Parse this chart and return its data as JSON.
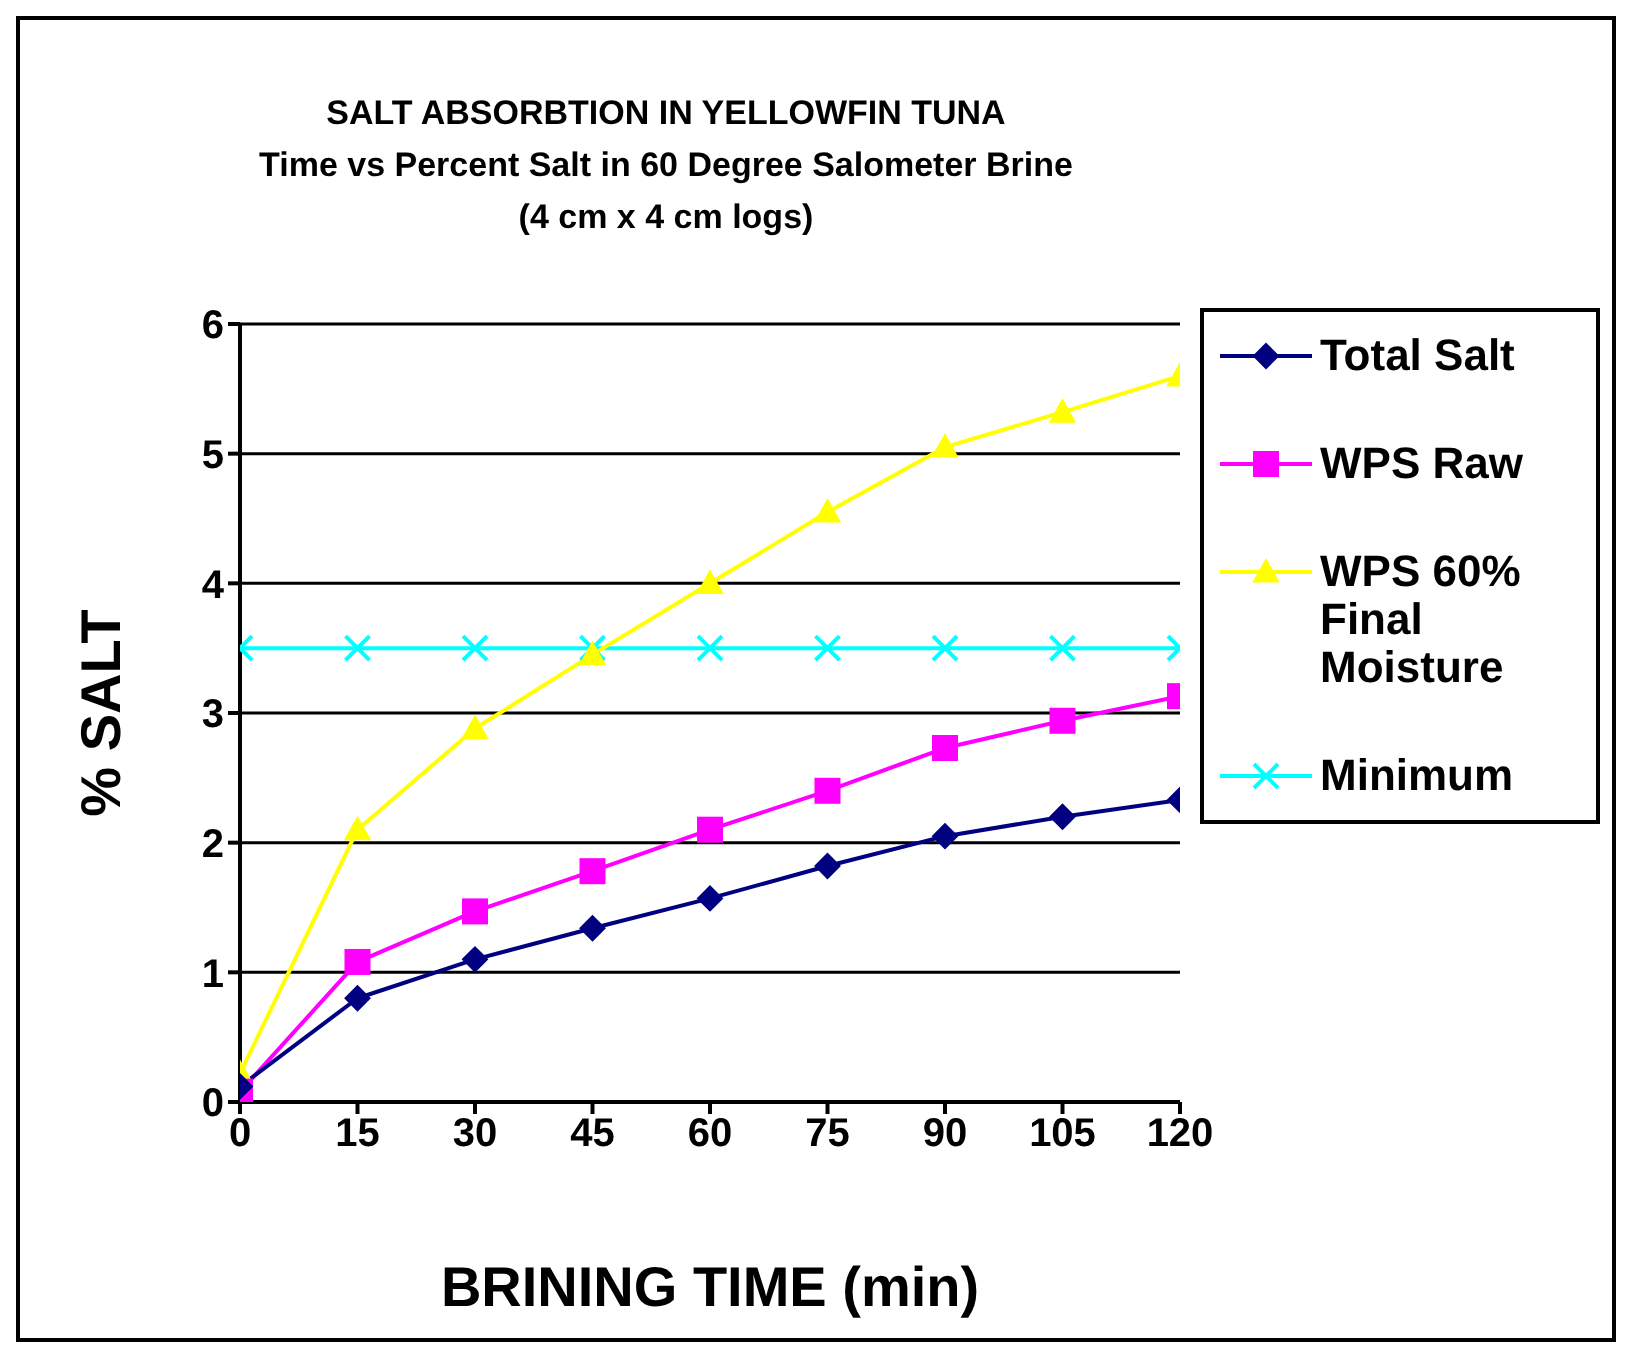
{
  "chart_data": {
    "type": "line",
    "title": "SALT ABSORBTION IN YELLOWFIN TUNA",
    "subtitle": "Time vs Percent Salt in 60 Degree Salometer Brine\n(4 cm x 4 cm logs)",
    "xlabel": "BRINING TIME (min)",
    "ylabel": "% SALT",
    "x": [
      0,
      15,
      30,
      45,
      60,
      75,
      90,
      105,
      120
    ],
    "series": [
      {
        "name": "Total Salt",
        "color": "#000080",
        "marker": "diamond",
        "values": [
          0.12,
          0.8,
          1.1,
          1.34,
          1.57,
          1.82,
          2.05,
          2.2,
          2.33
        ]
      },
      {
        "name": "WPS Raw",
        "color": "#ff00ff",
        "marker": "square",
        "values": [
          0.08,
          1.08,
          1.47,
          1.78,
          2.1,
          2.4,
          2.73,
          2.94,
          3.13
        ]
      },
      {
        "name": "WPS 60% Final Moisture",
        "color": "#ffff00",
        "marker": "triangle",
        "values": [
          0.22,
          2.1,
          2.88,
          3.45,
          4.0,
          4.55,
          5.05,
          5.32,
          5.6
        ]
      },
      {
        "name": "Minimum",
        "color": "#00ffff",
        "marker": "cross",
        "values": [
          3.5,
          3.5,
          3.5,
          3.5,
          3.5,
          3.5,
          3.5,
          3.5,
          3.5
        ]
      }
    ],
    "xlim": [
      0,
      120
    ],
    "xticks": [
      0,
      15,
      30,
      45,
      60,
      75,
      90,
      105,
      120
    ],
    "ylim": [
      0,
      6
    ],
    "yticks": [
      0,
      1,
      2,
      3,
      4,
      5,
      6
    ],
    "grid": "y",
    "legend": "right",
    "line_style": "solid"
  }
}
